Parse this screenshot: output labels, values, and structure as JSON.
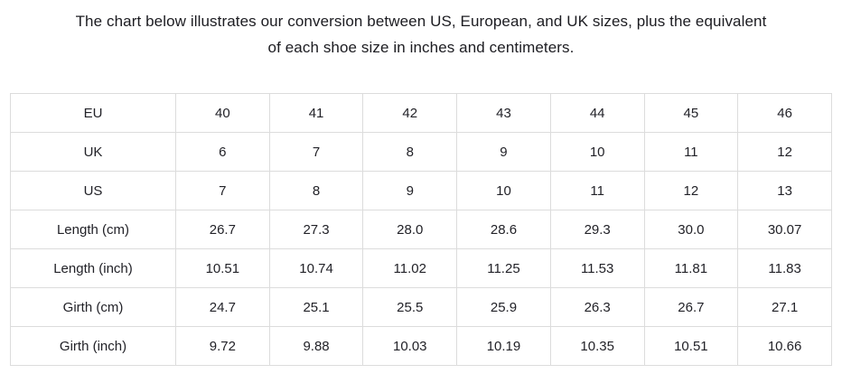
{
  "intro": {
    "lines": [
      "The chart below illustrates our conversion between US, European, and UK sizes, plus the equivalent",
      "of each shoe size in inches and centimeters."
    ]
  },
  "chart_data": {
    "type": "table",
    "rows": [
      {
        "label": "EU",
        "values": [
          "40",
          "41",
          "42",
          "43",
          "44",
          "45",
          "46"
        ]
      },
      {
        "label": "UK",
        "values": [
          "6",
          "7",
          "8",
          "9",
          "10",
          "11",
          "12"
        ]
      },
      {
        "label": "US",
        "values": [
          "7",
          "8",
          "9",
          "10",
          "11",
          "12",
          "13"
        ]
      },
      {
        "label": "Length (cm)",
        "values": [
          "26.7",
          "27.3",
          "28.0",
          "28.6",
          "29.3",
          "30.0",
          "30.07"
        ]
      },
      {
        "label": "Length (inch)",
        "values": [
          "10.51",
          "10.74",
          "11.02",
          "11.25",
          "11.53",
          "11.81",
          "11.83"
        ]
      },
      {
        "label": "Girth (cm)",
        "values": [
          "24.7",
          "25.1",
          "25.5",
          "25.9",
          "26.3",
          "26.7",
          "27.1"
        ]
      },
      {
        "label": "Girth (inch)",
        "values": [
          "9.72",
          "9.88",
          "10.03",
          "10.19",
          "10.35",
          "10.51",
          "10.66"
        ]
      }
    ]
  },
  "colors": {
    "background": "#ffffff",
    "text": "#222228",
    "table_border": "#dcdcdc"
  }
}
